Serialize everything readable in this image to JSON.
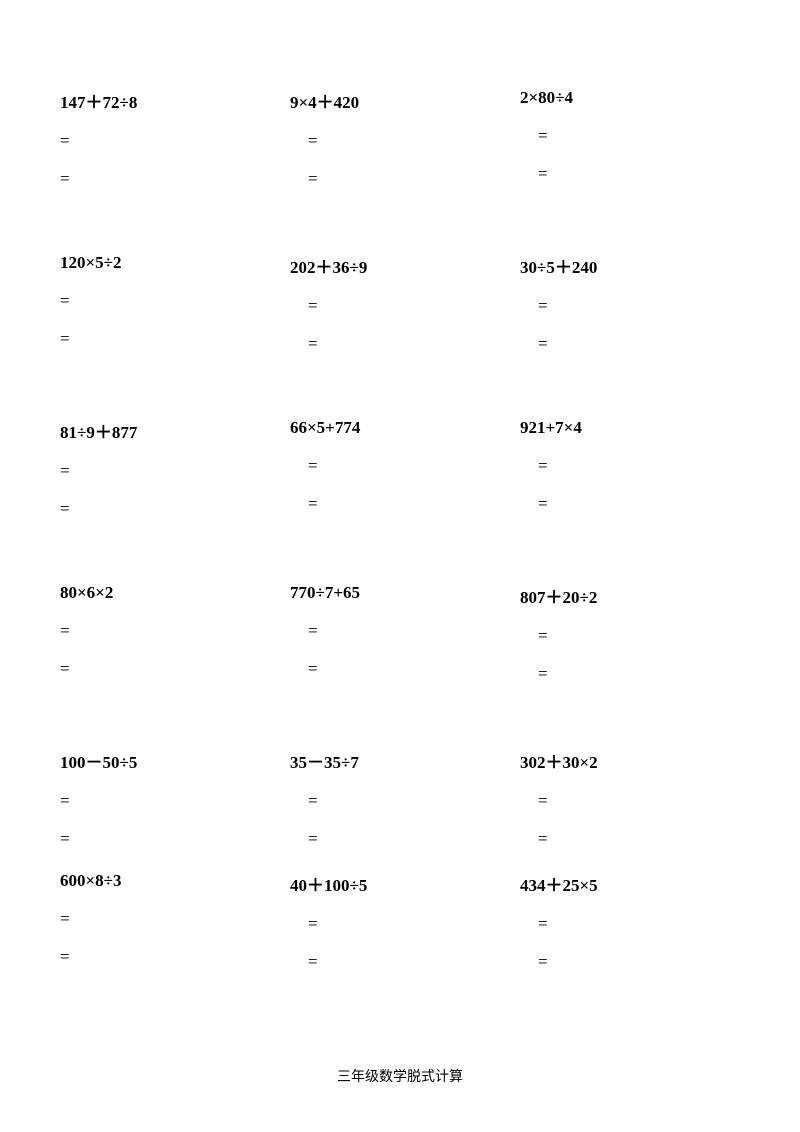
{
  "worksheet": {
    "footer": "三年级数学脱式计算",
    "equals_sign": "=",
    "text_color": "#000000",
    "background_color": "#ffffff",
    "expr_font_weight": "bold",
    "expr_font_size": 17,
    "footer_font_size": 14,
    "rows": [
      [
        {
          "expr": "147＋72÷8"
        },
        {
          "expr": "9×4＋420"
        },
        {
          "expr": "2×80÷4"
        }
      ],
      [
        {
          "expr": "120×5÷2"
        },
        {
          "expr": "202＋36÷9"
        },
        {
          "expr": "30÷5＋240"
        }
      ],
      [
        {
          "expr": "81÷9＋877"
        },
        {
          "expr": "66×5+774"
        },
        {
          "expr": "921+7×4"
        }
      ],
      [
        {
          "expr": "80×6×2"
        },
        {
          "expr": "770÷7+65"
        },
        {
          "expr": "807＋20÷2"
        }
      ],
      [
        {
          "expr": "100－50÷5"
        },
        {
          "expr": "35－35÷7"
        },
        {
          "expr": "302＋30×2"
        }
      ],
      [
        {
          "expr": "600×8÷3"
        },
        {
          "expr": "40＋100÷5"
        },
        {
          "expr": "434＋25×5"
        }
      ]
    ]
  }
}
